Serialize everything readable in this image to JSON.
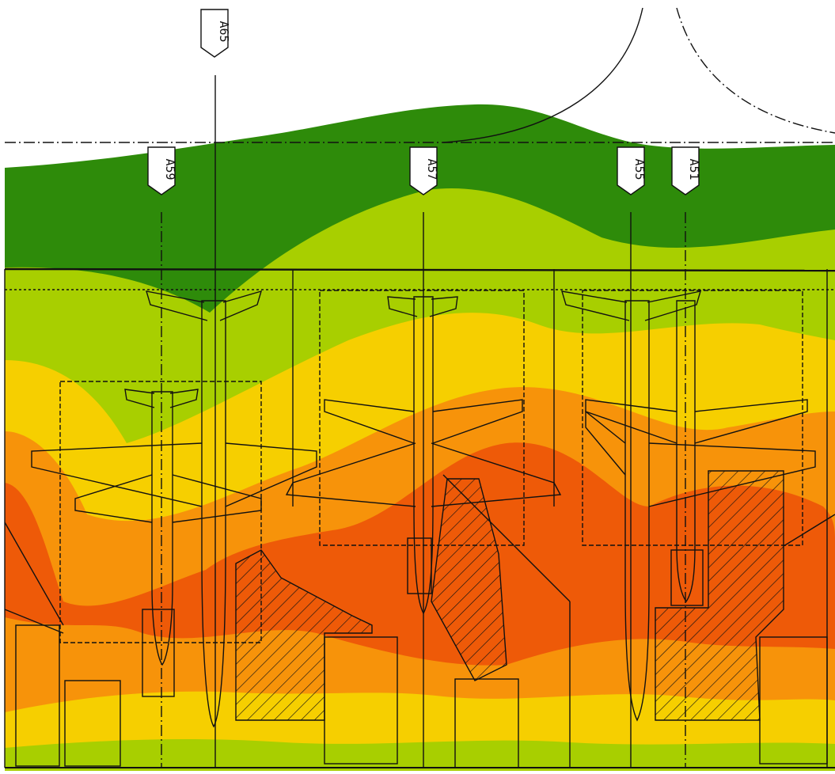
{
  "diagram": {
    "colors": {
      "background": "#ffffff",
      "ink": "#111111",
      "dark_green": "#2e8b0a",
      "light_green": "#a8cf00",
      "yellow": "#f6cf00",
      "orange": "#f7930a",
      "red_orange": "#ee5a08",
      "hatch": "#111111"
    },
    "stands": [
      {
        "label": "A65"
      },
      {
        "label": "A59"
      },
      {
        "label": "A57"
      },
      {
        "label": "A55"
      },
      {
        "label": "A51"
      }
    ]
  }
}
